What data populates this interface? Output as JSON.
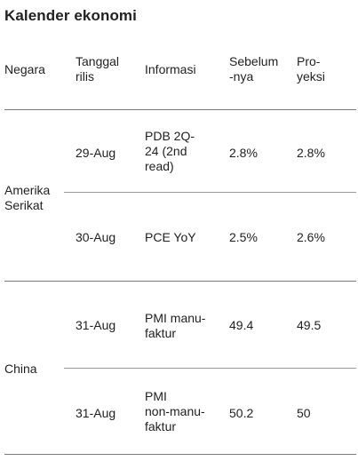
{
  "title": "Kalender ekonomi",
  "headers": {
    "country": "Negara",
    "date": "Tanggal\nrilis",
    "info": "Informasi",
    "before": "Sebelum\n-nya",
    "projection": "Pro-\nyeksi"
  },
  "groups": [
    {
      "country": "Amerika\nSerikat",
      "rows": [
        {
          "date": "29-Aug",
          "info": "PDB 2Q-\n24 (2nd\nread)",
          "before": "2.8%",
          "projection": "2.8%"
        },
        {
          "date": "30-Aug",
          "info": "PCE YoY",
          "before": "2.5%",
          "projection": "2.6%"
        }
      ]
    },
    {
      "country": "China",
      "rows": [
        {
          "date": "31-Aug",
          "info": "PMI manu-\nfaktur",
          "before": "49.4",
          "projection": "49.5"
        },
        {
          "date": "31-Aug",
          "info": "PMI\nnon-manu-\nfaktur",
          "before": "50.2",
          "projection": "50"
        }
      ]
    }
  ]
}
